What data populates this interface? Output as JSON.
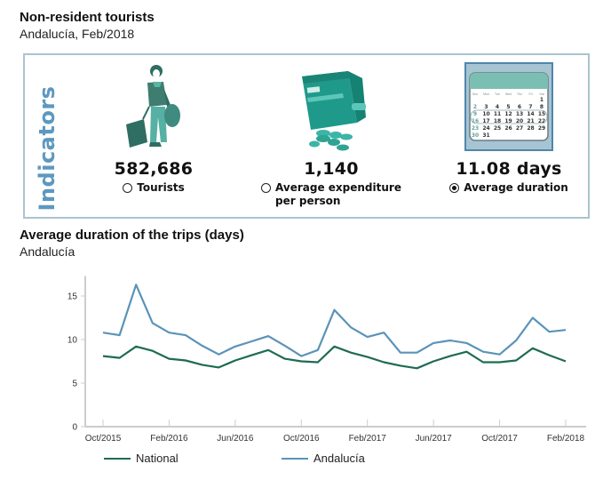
{
  "header": {
    "title": "Non-resident tourists",
    "subtitle": "Andalucía, Feb/2018"
  },
  "indicators": {
    "heading": "Indicators",
    "items": [
      {
        "icon": "traveler-icon",
        "value": "582,686",
        "label": "Tourists",
        "selected": false
      },
      {
        "icon": "wallet-icon",
        "value": "1,140",
        "label_line1": "Average expenditure",
        "label_line2": "per person",
        "selected": false
      },
      {
        "icon": "calendar-icon",
        "value": "11.08 days",
        "label": "Average duration",
        "selected": true
      }
    ],
    "calendar": {
      "weekdays": [
        "Sun",
        "Mon",
        "Tue",
        "Wed",
        "Thu",
        "Fri",
        "Sat"
      ],
      "rows": [
        [
          "",
          "",
          "",
          "",
          "",
          "",
          "1"
        ],
        [
          "2",
          "3",
          "4",
          "5",
          "6",
          "7",
          "8"
        ],
        [
          "9",
          "10",
          "11",
          "12",
          "13",
          "14",
          "15"
        ],
        [
          "16",
          "17",
          "18",
          "19",
          "20",
          "21",
          "22"
        ],
        [
          "23",
          "24",
          "25",
          "26",
          "27",
          "28",
          "29"
        ],
        [
          "30",
          "31",
          "",
          "",
          "",
          "",
          ""
        ]
      ]
    }
  },
  "colors": {
    "national": "#1f6b52",
    "andalucia": "#5b93b8",
    "accent": "#5d98bf",
    "panel_border": "#a9c4cf",
    "teal": "#2a9d8f"
  },
  "chart_data": {
    "type": "line",
    "title": "Average duration of the trips (days)",
    "subtitle": "Andalucía",
    "xlabel": "",
    "ylabel": "",
    "ylim": [
      0,
      17.3
    ],
    "yticks": [
      0,
      5,
      10,
      15
    ],
    "x": [
      "Oct/2015",
      "Nov/2015",
      "Dec/2015",
      "Jan/2016",
      "Feb/2016",
      "Mar/2016",
      "Apr/2016",
      "May/2016",
      "Jun/2016",
      "Jul/2016",
      "Aug/2016",
      "Sep/2016",
      "Oct/2016",
      "Nov/2016",
      "Dec/2016",
      "Jan/2017",
      "Feb/2017",
      "Mar/2017",
      "Apr/2017",
      "May/2017",
      "Jun/2017",
      "Jul/2017",
      "Aug/2017",
      "Sep/2017",
      "Oct/2017",
      "Nov/2017",
      "Dec/2017",
      "Jan/2018",
      "Feb/2018"
    ],
    "xtick_labels": [
      "Oct/2015",
      "Feb/2016",
      "Jun/2016",
      "Oct/2016",
      "Feb/2017",
      "Jun/2017",
      "Oct/2017",
      "Feb/2018"
    ],
    "xtick_indices": [
      0,
      4,
      8,
      12,
      16,
      20,
      24,
      28
    ],
    "grid": false,
    "legend": "bottom",
    "series": [
      {
        "name": "National",
        "values": [
          8.1,
          7.9,
          9.2,
          8.7,
          7.8,
          7.6,
          7.1,
          6.8,
          7.6,
          8.2,
          8.8,
          7.8,
          7.5,
          7.4,
          9.2,
          8.5,
          8.0,
          7.4,
          7.0,
          6.7,
          7.5,
          8.1,
          8.6,
          7.4,
          7.4,
          7.6,
          9.0,
          8.2,
          7.5
        ]
      },
      {
        "name": "Andalucía",
        "values": [
          10.8,
          10.5,
          16.3,
          11.9,
          10.8,
          10.5,
          9.3,
          8.3,
          9.2,
          9.8,
          10.4,
          9.3,
          8.1,
          8.8,
          13.4,
          11.4,
          10.3,
          10.8,
          8.5,
          8.5,
          9.6,
          9.9,
          9.6,
          8.6,
          8.3,
          9.9,
          12.5,
          10.9,
          11.1
        ]
      }
    ]
  }
}
